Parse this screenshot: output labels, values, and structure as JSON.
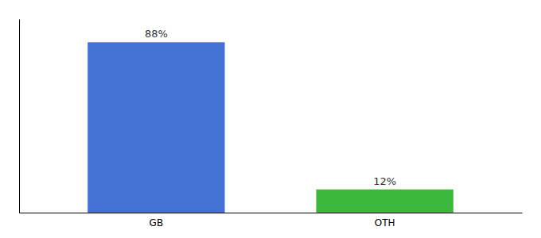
{
  "chart_data": {
    "type": "bar",
    "categories": [
      "GB",
      "OTH"
    ],
    "values": [
      88,
      12
    ],
    "value_labels": [
      "88%",
      "12%"
    ],
    "colors": [
      "#4472d4",
      "#3cb83c"
    ],
    "ylim": [
      0,
      100
    ],
    "data_labels": true,
    "tick_labels": "x"
  }
}
